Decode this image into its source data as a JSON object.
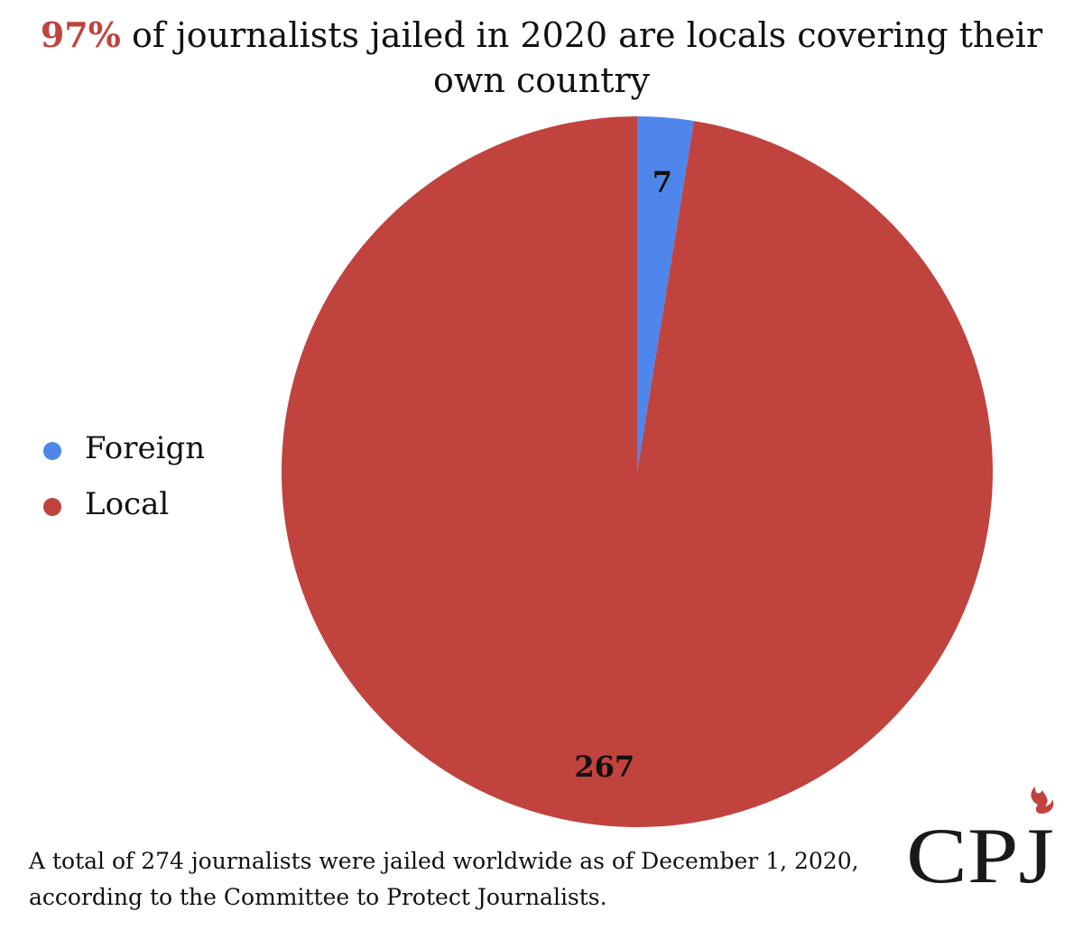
{
  "title": {
    "highlight": "97%",
    "text": " of journalists jailed in 2020 are locals covering their own country"
  },
  "chart_data": {
    "type": "pie",
    "title": "97% of journalists jailed in 2020 are locals covering their own country",
    "slices": [
      {
        "label": "Foreign",
        "value": 7,
        "color": "#4f86ec"
      },
      {
        "label": "Local",
        "value": 267,
        "color": "#c0433e"
      }
    ],
    "start_angle_deg": 0,
    "direction": "clockwise",
    "legend_position": "left"
  },
  "legend": {
    "items": [
      {
        "label": "Foreign",
        "color": "#4f86ec"
      },
      {
        "label": "Local",
        "color": "#c0433e"
      }
    ]
  },
  "footnote": "A total of 274 journalists were jailed worldwide as of December 1, 2020, according to the Committee to Protect Journalists.",
  "logo": {
    "text": "CPJ",
    "flame_color": "#c0433e"
  }
}
